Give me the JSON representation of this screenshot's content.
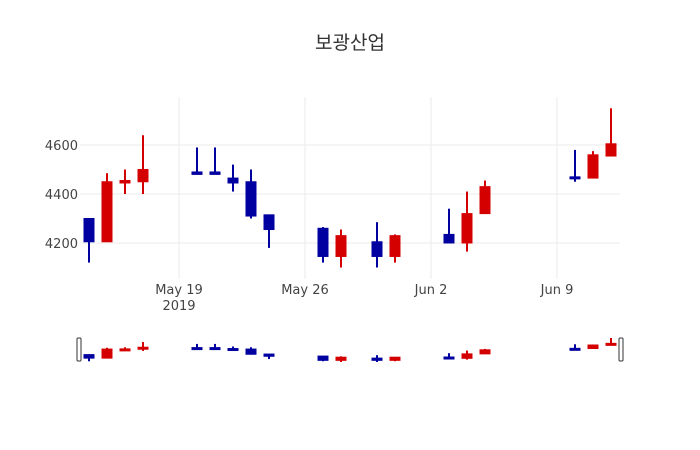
{
  "chart_data": {
    "type": "candlestick",
    "title": "보광산업",
    "xlabel": "",
    "ylabel": "",
    "x_tick_labels": [
      {
        "date": "2019-05-19",
        "label": "May 19",
        "sublabel": "2019"
      },
      {
        "date": "2019-05-26",
        "label": "May 26",
        "sublabel": ""
      },
      {
        "date": "2019-06-02",
        "label": "Jun 2",
        "sublabel": ""
      },
      {
        "date": "2019-06-09",
        "label": "Jun 9",
        "sublabel": ""
      }
    ],
    "y_ticks": [
      4200,
      4400,
      4600
    ],
    "ylim": [
      4053,
      4796
    ],
    "xlim": [
      "2019-05-13 12:00",
      "2019-06-12 12:00"
    ],
    "grid": true,
    "rangeslider": true,
    "increasing_color": "#D40000",
    "decreasing_color": "#0000A0",
    "series": [
      {
        "date": "2019-05-14",
        "open": 4300,
        "high": 4300,
        "low": 4120,
        "close": 4205
      },
      {
        "date": "2019-05-15",
        "open": 4205,
        "high": 4485,
        "low": 4205,
        "close": 4450
      },
      {
        "date": "2019-05-16",
        "open": 4445,
        "high": 4500,
        "low": 4400,
        "close": 4455
      },
      {
        "date": "2019-05-17",
        "open": 4450,
        "high": 4640,
        "low": 4400,
        "close": 4500
      },
      {
        "date": "2019-05-20",
        "open": 4490,
        "high": 4590,
        "low": 4480,
        "close": 4480
      },
      {
        "date": "2019-05-21",
        "open": 4490,
        "high": 4590,
        "low": 4480,
        "close": 4480
      },
      {
        "date": "2019-05-22",
        "open": 4465,
        "high": 4520,
        "low": 4410,
        "close": 4445
      },
      {
        "date": "2019-05-23",
        "open": 4450,
        "high": 4500,
        "low": 4300,
        "close": 4310
      },
      {
        "date": "2019-05-24",
        "open": 4315,
        "high": 4315,
        "low": 4180,
        "close": 4255
      },
      {
        "date": "2019-05-27",
        "open": 4260,
        "high": 4265,
        "low": 4120,
        "close": 4145
      },
      {
        "date": "2019-05-28",
        "open": 4145,
        "high": 4255,
        "low": 4100,
        "close": 4230
      },
      {
        "date": "2019-05-30",
        "open": 4205,
        "high": 4285,
        "low": 4100,
        "close": 4145
      },
      {
        "date": "2019-05-31",
        "open": 4145,
        "high": 4235,
        "low": 4120,
        "close": 4230
      },
      {
        "date": "2019-06-03",
        "open": 4235,
        "high": 4340,
        "low": 4200,
        "close": 4200
      },
      {
        "date": "2019-06-04",
        "open": 4200,
        "high": 4410,
        "low": 4165,
        "close": 4320
      },
      {
        "date": "2019-06-05",
        "open": 4320,
        "high": 4455,
        "low": 4320,
        "close": 4430
      },
      {
        "date": "2019-06-10",
        "open": 4470,
        "high": 4580,
        "low": 4450,
        "close": 4465
      },
      {
        "date": "2019-06-11",
        "open": 4465,
        "high": 4575,
        "low": 4465,
        "close": 4560
      },
      {
        "date": "2019-06-12",
        "open": 4555,
        "high": 4750,
        "low": 4555,
        "close": 4605
      }
    ]
  }
}
